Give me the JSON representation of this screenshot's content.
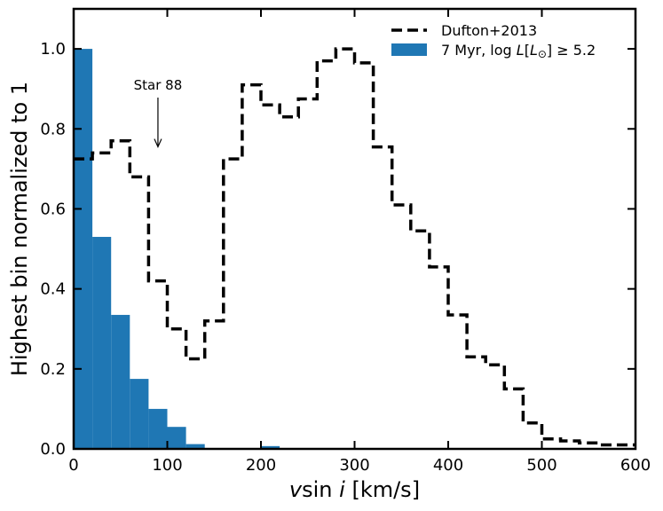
{
  "chart_data": {
    "type": "bar",
    "xlabel_parts": [
      "v",
      "sin",
      "i",
      " [km/s]"
    ],
    "ylabel": "Highest bin normalized to 1",
    "xlim": [
      0,
      600
    ],
    "ylim": [
      0,
      1.1
    ],
    "xticks": [
      0,
      100,
      200,
      300,
      400,
      500,
      600
    ],
    "yticks": [
      0.0,
      0.2,
      0.4,
      0.6,
      0.8,
      1.0
    ],
    "xtick_labels": [
      "0",
      "100",
      "200",
      "300",
      "400",
      "500",
      "600"
    ],
    "ytick_labels": [
      "0.0",
      "0.2",
      "0.4",
      "0.6",
      "0.8",
      "1.0"
    ],
    "grid": false,
    "legend_position": "top-right",
    "series": [
      {
        "name": "Dufton+2013",
        "style": "dashed-step",
        "color": "#000000",
        "bin_width": 20,
        "bin_edges_start": 0,
        "values": [
          0.725,
          0.74,
          0.77,
          0.68,
          0.42,
          0.3,
          0.225,
          0.32,
          0.725,
          0.91,
          0.86,
          0.83,
          0.875,
          0.97,
          1.0,
          0.965,
          0.755,
          0.61,
          0.545,
          0.455,
          0.335,
          0.23,
          0.21,
          0.15,
          0.065,
          0.025,
          0.02,
          0.015,
          0.01,
          0.01
        ]
      },
      {
        "name_parts": [
          "7 Myr, log ",
          "L",
          "[",
          "L",
          "⊙",
          "] ≥ 5.2"
        ],
        "style": "filled-hist",
        "color": "#1f77b4",
        "bin_width": 20,
        "bin_edges_start": 0,
        "values": [
          1.0,
          0.53,
          0.335,
          0.175,
          0.1,
          0.055,
          0.012,
          0,
          0,
          0,
          0.007
        ]
      }
    ],
    "annotations": [
      {
        "text": "Star 88",
        "x": 90,
        "y": 0.755
      }
    ]
  }
}
